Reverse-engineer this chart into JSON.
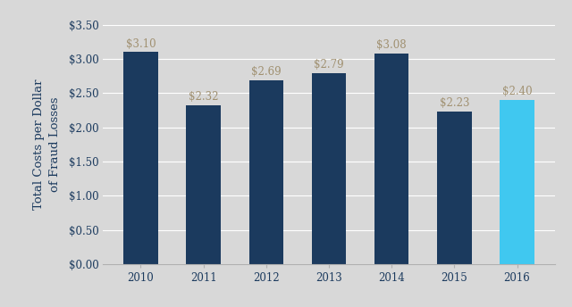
{
  "years": [
    "2010",
    "2011",
    "2012",
    "2013",
    "2014",
    "2015",
    "2016"
  ],
  "values": [
    3.1,
    2.32,
    2.69,
    2.79,
    3.08,
    2.23,
    2.4
  ],
  "bar_colors": [
    "#1b3a5e",
    "#1b3a5e",
    "#1b3a5e",
    "#1b3a5e",
    "#1b3a5e",
    "#1b3a5e",
    "#40c8f0"
  ],
  "labels": [
    "$3.10",
    "$2.32",
    "$2.69",
    "$2.79",
    "$3.08",
    "$2.23",
    "$2.40"
  ],
  "ylabel": "Total Costs per Dollar\nof Fraud Losses",
  "ylim": [
    0,
    3.5
  ],
  "yticks": [
    0.0,
    0.5,
    1.0,
    1.5,
    2.0,
    2.5,
    3.0,
    3.5
  ],
  "ytick_labels": [
    "$0.00",
    "$0.50",
    "$1.00",
    "$1.50",
    "$2.00",
    "$2.50",
    "$3.00",
    "$3.50"
  ],
  "background_color": "#d8d8d8",
  "label_color": "#a09070",
  "ylabel_color": "#1b3a5e",
  "tick_color": "#1b3a5e",
  "label_fontsize": 8.5,
  "ylabel_fontsize": 9.5,
  "tick_fontsize": 8.5,
  "bar_width": 0.55
}
